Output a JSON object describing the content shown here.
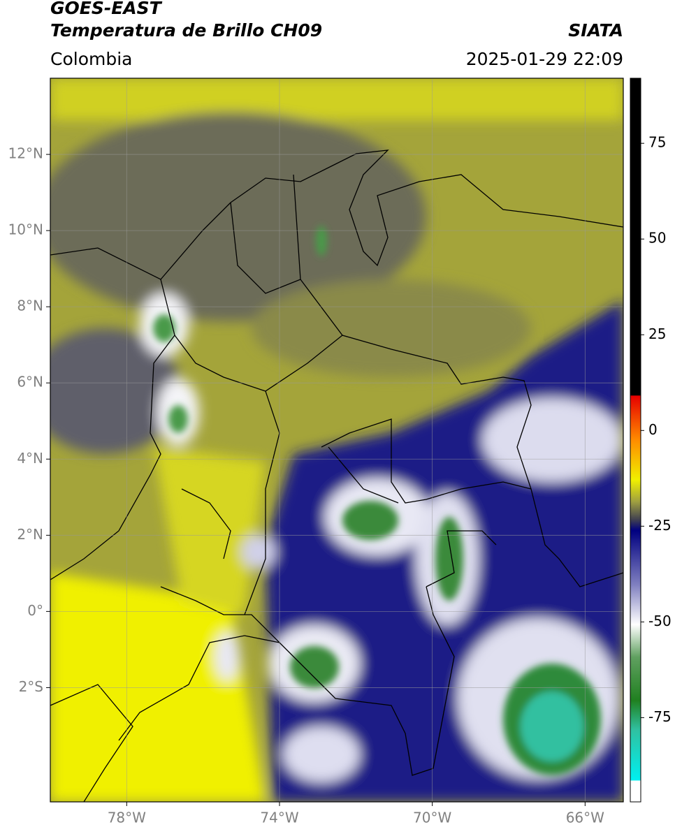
{
  "header": {
    "title": "GOES-EAST",
    "product": "Temperatura de Brillo CH09",
    "source": "SIATA",
    "region": "Colombia",
    "datetime": "2025-01-29 22:09"
  },
  "map": {
    "lon_range": [
      -80,
      -65
    ],
    "lat_range": [
      -5,
      14
    ],
    "lon_ticks": [
      {
        "value": -78,
        "label": "78°W"
      },
      {
        "value": -74,
        "label": "74°W"
      },
      {
        "value": -70,
        "label": "70°W"
      },
      {
        "value": -66,
        "label": "66°W"
      }
    ],
    "lat_ticks": [
      {
        "value": 12,
        "label": "12°N"
      },
      {
        "value": 10,
        "label": "10°N"
      },
      {
        "value": 8,
        "label": "8°N"
      },
      {
        "value": 6,
        "label": "6°N"
      },
      {
        "value": 4,
        "label": "4°N"
      },
      {
        "value": 2,
        "label": "2°N"
      },
      {
        "value": 0,
        "label": "0°"
      },
      {
        "value": -2,
        "label": "2°S"
      }
    ],
    "grid": true
  },
  "colorbar": {
    "range": [
      -97,
      92
    ],
    "ticks": [
      75,
      50,
      25,
      0,
      -25,
      -50,
      -75
    ]
  }
}
